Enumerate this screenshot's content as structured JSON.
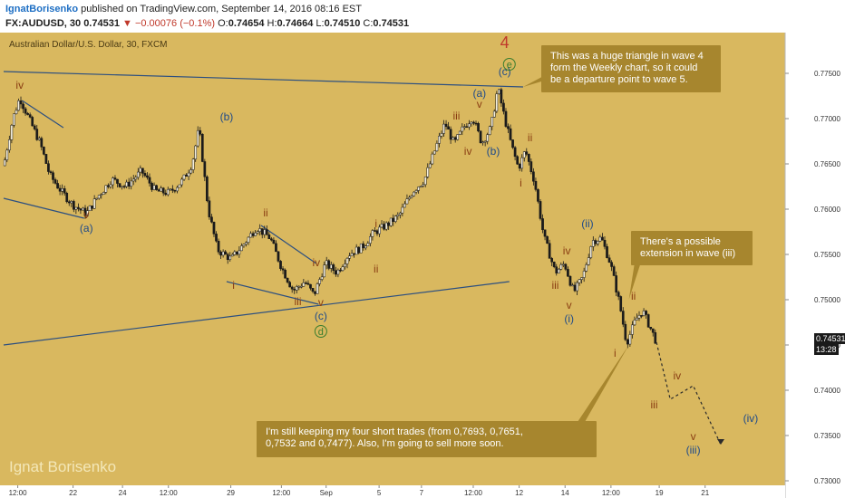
{
  "header": {
    "author": "IgnatBorisenko",
    "published_text": "published on TradingView.com, September 14, 2016 08:16 EST",
    "symbol": "FX:AUDUSD, 30",
    "last_price": "0.74531",
    "change": "▼ −0.00076 (−0.1%)",
    "o_label": "O:",
    "o_value": "0.74654",
    "h_label": "H:",
    "h_value": "0.74664",
    "l_label": "L:",
    "l_value": "0.74510",
    "c_label": "C:",
    "c_value": "0.74531"
  },
  "chart_title": "Australian Dollar/U.S. Dollar, 30, FXCM",
  "watermark": "Ignat Borisenko",
  "current_price_label": "0.74531",
  "countdown_label": "13:28",
  "colors": {
    "background": "#d9b85f",
    "candle": "#1a1a1a",
    "trendline": "#2c4f80",
    "wave_blue": "#1e4a8a",
    "wave_brown": "#8a3d12",
    "callout": "#a7862e",
    "forecast": "#2b2b2b",
    "wave4": "#c0392b",
    "circle_green": "#3a7d2e"
  },
  "chart_data": {
    "type": "candlestick",
    "title": "Australian Dollar/U.S. Dollar, 30, FXCM",
    "x_tick_labels": [
      "12:00",
      "22",
      "24",
      "12:00",
      "29",
      "12:00",
      "Sep",
      "5",
      "7",
      "12:00",
      "12",
      "14",
      "12:00",
      "19",
      "21"
    ],
    "y_tick_labels": [
      "0.77500",
      "0.77000",
      "0.76500",
      "0.76000",
      "0.75500",
      "0.75000",
      "0.74500",
      "0.74000",
      "0.73500",
      "0.73000"
    ],
    "ylim": [
      0.7295,
      0.7795
    ],
    "grid": false,
    "price_path": [
      {
        "t": 0,
        "p": 0.7648
      },
      {
        "t": 4,
        "p": 0.77
      },
      {
        "t": 7,
        "p": 0.7723
      },
      {
        "t": 11,
        "p": 0.77
      },
      {
        "t": 16,
        "p": 0.7672
      },
      {
        "t": 20,
        "p": 0.7638
      },
      {
        "t": 25,
        "p": 0.762
      },
      {
        "t": 30,
        "p": 0.7605
      },
      {
        "t": 36,
        "p": 0.7595
      },
      {
        "t": 41,
        "p": 0.7614
      },
      {
        "t": 47,
        "p": 0.7633
      },
      {
        "t": 53,
        "p": 0.7625
      },
      {
        "t": 60,
        "p": 0.7642
      },
      {
        "t": 66,
        "p": 0.762
      },
      {
        "t": 72,
        "p": 0.7618
      },
      {
        "t": 78,
        "p": 0.7632
      },
      {
        "t": 82,
        "p": 0.765
      },
      {
        "t": 85,
        "p": 0.769
      },
      {
        "t": 89,
        "p": 0.76
      },
      {
        "t": 93,
        "p": 0.7555
      },
      {
        "t": 99,
        "p": 0.7545
      },
      {
        "t": 104,
        "p": 0.756
      },
      {
        "t": 110,
        "p": 0.758
      },
      {
        "t": 116,
        "p": 0.7568
      },
      {
        "t": 121,
        "p": 0.7535
      },
      {
        "t": 126,
        "p": 0.751
      },
      {
        "t": 131,
        "p": 0.752
      },
      {
        "t": 135,
        "p": 0.7505
      },
      {
        "t": 140,
        "p": 0.754
      },
      {
        "t": 145,
        "p": 0.753
      },
      {
        "t": 150,
        "p": 0.755
      },
      {
        "t": 156,
        "p": 0.7558
      },
      {
        "t": 161,
        "p": 0.7574
      },
      {
        "t": 167,
        "p": 0.7583
      },
      {
        "t": 172,
        "p": 0.7593
      },
      {
        "t": 178,
        "p": 0.762
      },
      {
        "t": 183,
        "p": 0.7632
      },
      {
        "t": 188,
        "p": 0.7668
      },
      {
        "t": 192,
        "p": 0.7695
      },
      {
        "t": 196,
        "p": 0.7672
      },
      {
        "t": 200,
        "p": 0.769
      },
      {
        "t": 204,
        "p": 0.7702
      },
      {
        "t": 208,
        "p": 0.7673
      },
      {
        "t": 212,
        "p": 0.769
      },
      {
        "t": 215,
        "p": 0.7734
      },
      {
        "t": 218,
        "p": 0.77
      },
      {
        "t": 221,
        "p": 0.767
      },
      {
        "t": 224,
        "p": 0.7645
      },
      {
        "t": 227,
        "p": 0.7665
      },
      {
        "t": 231,
        "p": 0.763
      },
      {
        "t": 235,
        "p": 0.757
      },
      {
        "t": 240,
        "p": 0.753
      },
      {
        "t": 244,
        "p": 0.754
      },
      {
        "t": 248,
        "p": 0.7508
      },
      {
        "t": 252,
        "p": 0.7525
      },
      {
        "t": 256,
        "p": 0.7565
      },
      {
        "t": 260,
        "p": 0.7568
      },
      {
        "t": 264,
        "p": 0.754
      },
      {
        "t": 268,
        "p": 0.7495
      },
      {
        "t": 271,
        "p": 0.7452
      },
      {
        "t": 275,
        "p": 0.7478
      },
      {
        "t": 278,
        "p": 0.7488
      },
      {
        "t": 282,
        "p": 0.7465
      },
      {
        "t": 284,
        "p": 0.7453
      }
    ],
    "forecast_path": [
      {
        "t": 284,
        "p": 0.7453
      },
      {
        "t": 290,
        "p": 0.739
      },
      {
        "t": 300,
        "p": 0.7405
      },
      {
        "t": 312,
        "p": 0.734
      }
    ],
    "wave_labels": [
      {
        "text": "iv",
        "t": 7,
        "p": 0.7733,
        "c": "brown"
      },
      {
        "text": "v",
        "t": 36,
        "p": 0.759,
        "c": "brown"
      },
      {
        "text": "(a)",
        "t": 36,
        "p": 0.7575,
        "c": "blue"
      },
      {
        "text": "(b)",
        "t": 97,
        "p": 0.7698,
        "c": "blue"
      },
      {
        "text": "i",
        "t": 100,
        "p": 0.7512,
        "c": "brown"
      },
      {
        "text": "ii",
        "t": 114,
        "p": 0.7592,
        "c": "brown"
      },
      {
        "text": "iii",
        "t": 128,
        "p": 0.7494,
        "c": "brown"
      },
      {
        "text": "iv",
        "t": 136,
        "p": 0.7537,
        "c": "brown"
      },
      {
        "text": "v",
        "t": 138,
        "p": 0.7493,
        "c": "brown"
      },
      {
        "text": "(c)",
        "t": 138,
        "p": 0.7478,
        "c": "blue"
      },
      {
        "text": "i",
        "t": 162,
        "p": 0.758,
        "c": "brown"
      },
      {
        "text": "ii",
        "t": 162,
        "p": 0.753,
        "c": "brown"
      },
      {
        "text": "iii",
        "t": 197,
        "p": 0.7699,
        "c": "brown"
      },
      {
        "text": "iv",
        "t": 202,
        "p": 0.766,
        "c": "brown"
      },
      {
        "text": "v",
        "t": 207,
        "p": 0.7712,
        "c": "brown"
      },
      {
        "text": "(a)",
        "t": 207,
        "p": 0.7724,
        "c": "blue"
      },
      {
        "text": "(b)",
        "t": 213,
        "p": 0.766,
        "c": "blue"
      },
      {
        "text": "(c)",
        "t": 218,
        "p": 0.7748,
        "c": "blue"
      },
      {
        "text": "4",
        "t": 218,
        "p": 0.7778,
        "c": "red"
      },
      {
        "text": "ii",
        "t": 229,
        "p": 0.7675,
        "c": "brown"
      },
      {
        "text": "i",
        "t": 225,
        "p": 0.7625,
        "c": "brown"
      },
      {
        "text": "(ii)",
        "t": 254,
        "p": 0.758,
        "c": "blue"
      },
      {
        "text": "iv",
        "t": 245,
        "p": 0.755,
        "c": "brown"
      },
      {
        "text": "iii",
        "t": 240,
        "p": 0.7512,
        "c": "brown"
      },
      {
        "text": "v",
        "t": 246,
        "p": 0.749,
        "c": "brown"
      },
      {
        "text": "(i)",
        "t": 246,
        "p": 0.7475,
        "c": "blue"
      },
      {
        "text": "ii",
        "t": 274,
        "p": 0.75,
        "c": "brown"
      },
      {
        "text": "i",
        "t": 266,
        "p": 0.7437,
        "c": "brown"
      },
      {
        "text": "iv",
        "t": 293,
        "p": 0.7412,
        "c": "brown"
      },
      {
        "text": "iii",
        "t": 283,
        "p": 0.738,
        "c": "brown"
      },
      {
        "text": "v",
        "t": 300,
        "p": 0.7345,
        "c": "brown"
      },
      {
        "text": "(iii)",
        "t": 300,
        "p": 0.733,
        "c": "blue"
      },
      {
        "text": "(iv)",
        "t": 325,
        "p": 0.7365,
        "c": "blue"
      }
    ],
    "circled_labels": [
      {
        "text": "e",
        "t": 220,
        "p": 0.776
      },
      {
        "text": "d",
        "t": 138,
        "p": 0.7465
      }
    ],
    "trendlines": [
      {
        "t1": 0,
        "p1": 0.7752,
        "t2": 226,
        "p2": 0.7735
      },
      {
        "t1": 0,
        "p1": 0.7612,
        "t2": 35,
        "p2": 0.759
      },
      {
        "t1": 8,
        "p1": 0.772,
        "t2": 26,
        "p2": 0.769
      },
      {
        "t1": 0,
        "p1": 0.745,
        "t2": 220,
        "p2": 0.752
      },
      {
        "t1": 97,
        "p1": 0.752,
        "t2": 137,
        "p2": 0.7495
      },
      {
        "t1": 112,
        "p1": 0.7582,
        "t2": 136,
        "p2": 0.754
      }
    ],
    "annotations": [
      {
        "text": "This was a huge triangle in wave 4 form the Weekly chart, so it could be a departure point to wave 5."
      },
      {
        "text": "There's a possible extension in wave (iii)"
      },
      {
        "text": "I'm still keeping my four short trades (from 0,7693, 0,7651, 0,7532 and 0,7477). Also, I'm going to sell more soon."
      }
    ]
  }
}
